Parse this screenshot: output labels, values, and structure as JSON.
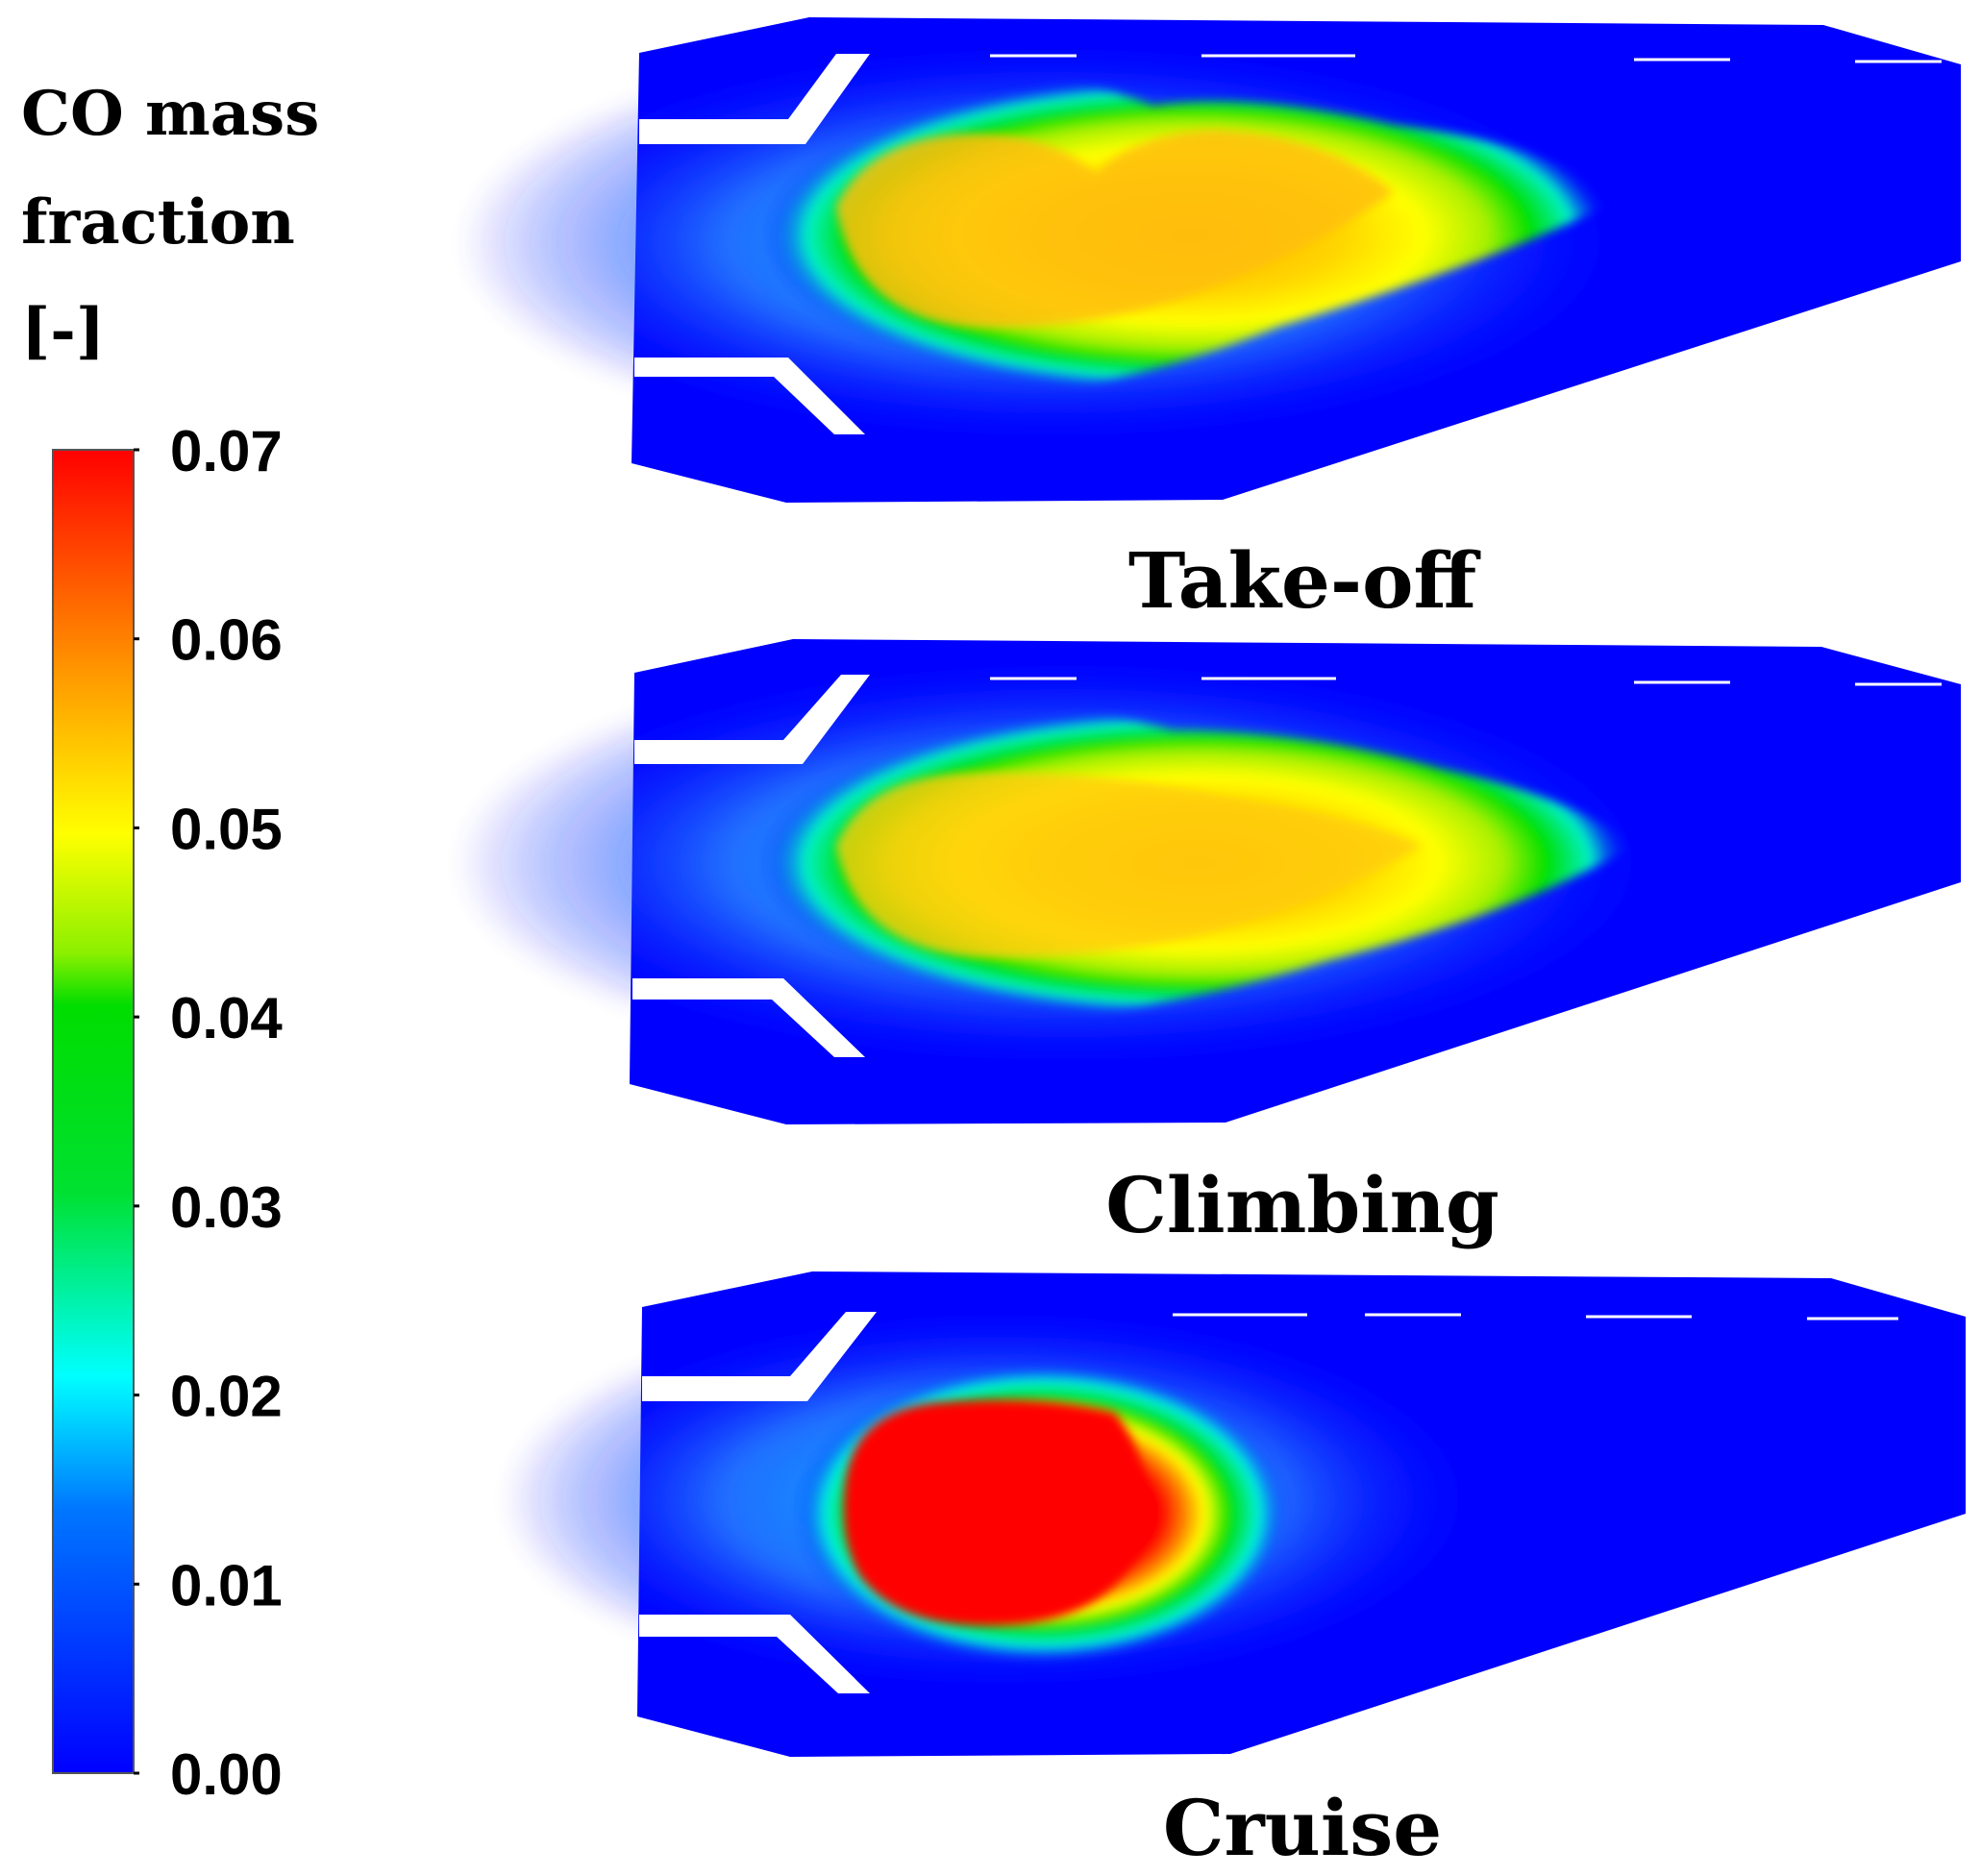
{
  "chart_data": {
    "type": "heatmap",
    "colorbar": {
      "title_lines": [
        "CO mass",
        "fraction",
        "[-]"
      ],
      "min": 0.0,
      "max": 0.07,
      "ticks": [
        "0.07",
        "0.06",
        "0.05",
        "0.04",
        "0.03",
        "0.02",
        "0.01",
        "0.00"
      ],
      "tick_values": [
        0.07,
        0.06,
        0.05,
        0.04,
        0.03,
        0.02,
        0.01,
        0.0
      ],
      "colors": [
        "#0000ff",
        "#00ffff",
        "#00ff00",
        "#ffff00",
        "#ff8c00",
        "#ff0000"
      ]
    },
    "panels": [
      {
        "label": "Take-off",
        "peak_value": 0.053
      },
      {
        "label": "Climbing",
        "peak_value": 0.051
      },
      {
        "label": "Cruise",
        "peak_value": 0.07
      }
    ]
  }
}
